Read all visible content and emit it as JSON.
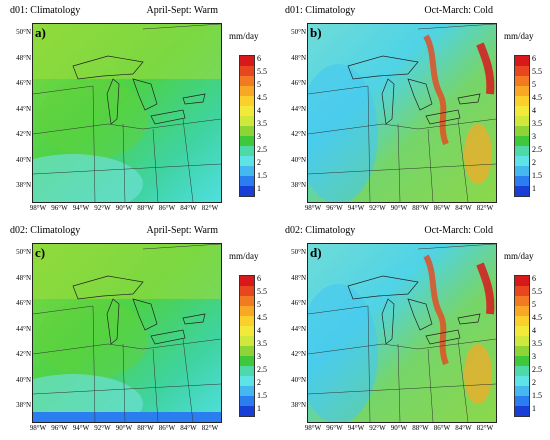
{
  "panels": [
    {
      "label": "a)",
      "domain_title": "d01: Climatology",
      "season": "April-Sept: Warm",
      "theme": "warm"
    },
    {
      "label": "b)",
      "domain_title": "d01: Climatology",
      "season": "Oct-March: Cold",
      "theme": "cold"
    },
    {
      "label": "c)",
      "domain_title": "d02: Climatology",
      "season": "April-Sept: Warm",
      "theme": "warm"
    },
    {
      "label": "d)",
      "domain_title": "d02: Climatology",
      "season": "Oct-March: Cold",
      "theme": "cold"
    }
  ],
  "latitude_labels": [
    "50°N",
    "48°N",
    "46°N",
    "44°N",
    "42°N",
    "40°N",
    "38°N"
  ],
  "longitude_labels": [
    "98°W",
    "96°W",
    "94°W",
    "92°W",
    "90°W",
    "88°W",
    "86°W",
    "84°W",
    "82°W"
  ],
  "colorbar": {
    "unit": "mm/day",
    "labels": [
      "6",
      "5.5",
      "5",
      "4.5",
      "4",
      "3.5",
      "3",
      "2.5",
      "2",
      "1.5",
      "1"
    ],
    "colors": [
      "#d7191c",
      "#e8461e",
      "#f27a22",
      "#f9a825",
      "#fbcf2c",
      "#f3e93a",
      "#cfe83b",
      "#8ed436",
      "#3fc83a",
      "#4fd9a8",
      "#5ee3e6",
      "#46b8f0",
      "#2a7ef0",
      "#1a3fd6"
    ]
  }
}
